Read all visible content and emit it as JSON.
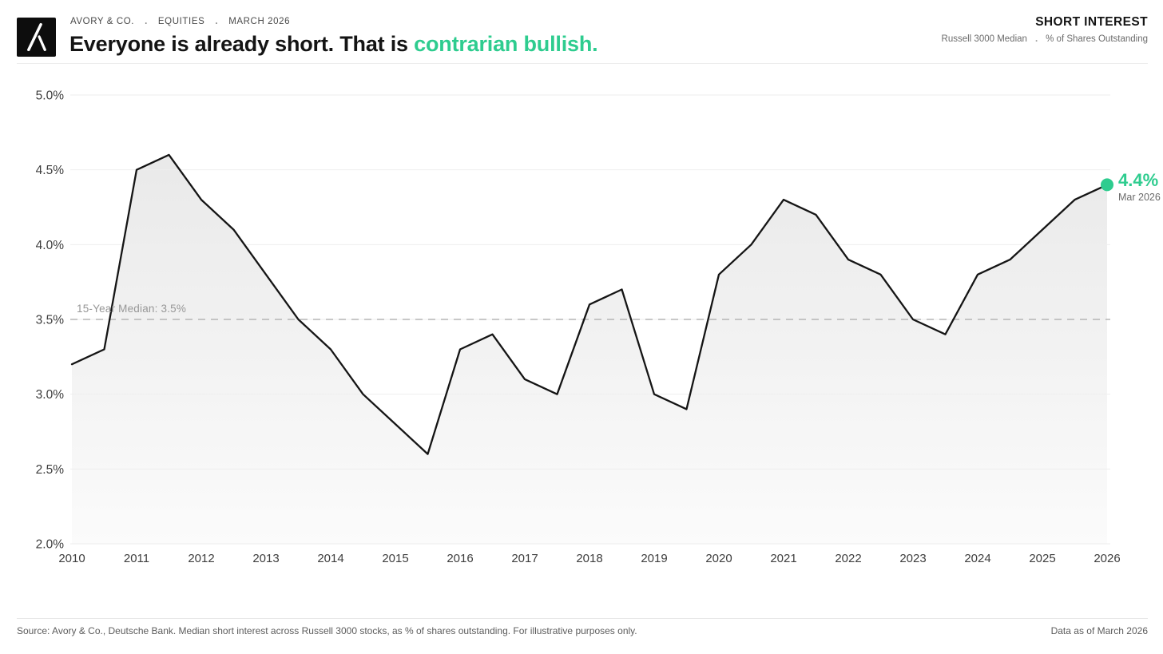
{
  "header": {
    "brand": "AVORY & CO.",
    "sep": ".",
    "section": "EQUITIES",
    "date": "MARCH 2026",
    "title_plain": "Everyone is already short. That is ",
    "title_accent": "contrarian bullish.",
    "right_title": "SHORT INTEREST",
    "right_sub_left": "Russell 3000 Median",
    "right_sub_sep": ".",
    "right_sub_right": "% of Shares Outstanding"
  },
  "colors": {
    "accent": "#2ECC8F",
    "line": "#151515",
    "grid": "#eeeeee",
    "median_dash": "#b5b5b5",
    "axis_text": "#3d3d3d",
    "area_top": "#e9e9e9",
    "area_bottom": "#fbfbfb"
  },
  "chart_data": {
    "type": "area",
    "title": "Everyone is already short. That is contrarian bullish.",
    "series_name": "Russell 3000 Median Short Interest, % of Shares Outstanding",
    "x": [
      2010,
      2010.5,
      2011,
      2011.5,
      2012,
      2012.5,
      2013,
      2013.5,
      2014,
      2014.5,
      2015,
      2015.5,
      2016,
      2016.5,
      2017,
      2017.5,
      2018,
      2018.5,
      2019,
      2019.5,
      2020,
      2020.5,
      2021,
      2021.5,
      2022,
      2022.5,
      2023,
      2023.5,
      2024,
      2024.5,
      2025,
      2025.5,
      2026
    ],
    "values": [
      3.2,
      3.3,
      4.5,
      4.6,
      4.3,
      4.1,
      3.8,
      3.5,
      3.3,
      3.0,
      2.8,
      2.6,
      3.3,
      3.4,
      3.1,
      3.0,
      3.6,
      3.7,
      3.0,
      2.9,
      3.8,
      4.0,
      4.3,
      4.2,
      3.9,
      3.8,
      3.5,
      3.4,
      3.8,
      3.9,
      4.1,
      4.3,
      4.4
    ],
    "xlim": [
      2010,
      2026
    ],
    "ylim": [
      2.0,
      5.0
    ],
    "yticks": [
      5.0,
      4.5,
      4.0,
      3.5,
      3.0,
      2.5,
      2.0
    ],
    "ytick_labels": [
      "5.0%",
      "4.5%",
      "4.0%",
      "3.5%",
      "3.0%",
      "2.5%",
      "2.0%"
    ],
    "xticks": [
      2010,
      2011,
      2012,
      2013,
      2014,
      2015,
      2016,
      2017,
      2018,
      2019,
      2020,
      2021,
      2022,
      2023,
      2024,
      2025,
      2026
    ],
    "xtick_labels": [
      "2010",
      "2011",
      "2012",
      "2013",
      "2014",
      "2015",
      "2016",
      "2017",
      "2018",
      "2019",
      "2020",
      "2021",
      "2022",
      "2023",
      "2024",
      "2025",
      "2026"
    ],
    "grid": true,
    "median_line": {
      "value": 3.5,
      "label": "15-Year Median: 3.5%"
    },
    "end_annotation": {
      "value_label": "4.4%",
      "date_label": "Mar 2026"
    }
  },
  "footer": {
    "source": "Source: Avory & Co., Deutsche Bank. Median short interest across Russell 3000 stocks, as % of shares outstanding. For illustrative purposes only.",
    "data_as_of": "Data as of March 2026"
  }
}
